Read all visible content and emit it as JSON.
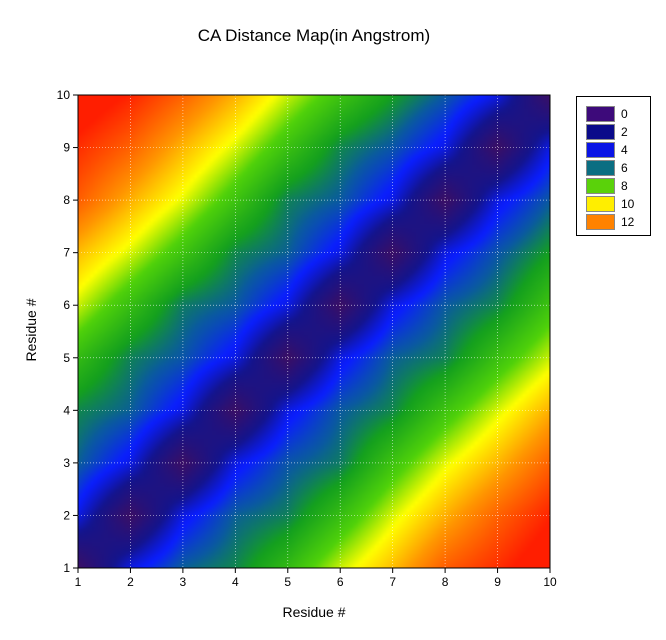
{
  "chart_data": {
    "type": "heatmap",
    "title": "CA Distance Map(in Angstrom)",
    "xlabel": "Residue #",
    "ylabel": "Residue #",
    "xlim": [
      1,
      10
    ],
    "ylim": [
      1,
      10
    ],
    "x_ticks": [
      1,
      2,
      3,
      4,
      5,
      6,
      7,
      8,
      9,
      10
    ],
    "y_ticks": [
      1,
      2,
      3,
      4,
      5,
      6,
      7,
      8,
      9,
      10
    ],
    "grid": true,
    "legend_position": "top-right",
    "residues": [
      1,
      2,
      3,
      4,
      5,
      6,
      7,
      8,
      9,
      10
    ],
    "distance_matrix": [
      [
        0.0,
        3.8,
        5.6,
        6.2,
        7.5,
        9.2,
        10.6,
        12.3,
        13.2,
        14.3
      ],
      [
        3.8,
        0.0,
        3.8,
        5.6,
        6.1,
        7.6,
        9.3,
        10.8,
        12.2,
        13.4
      ],
      [
        5.6,
        3.8,
        0.0,
        3.8,
        5.4,
        6.0,
        7.8,
        9.4,
        10.7,
        12.2
      ],
      [
        6.2,
        5.6,
        3.8,
        0.0,
        3.8,
        5.5,
        6.2,
        7.8,
        9.3,
        10.8
      ],
      [
        7.5,
        6.1,
        5.4,
        3.8,
        0.0,
        3.8,
        5.6,
        6.1,
        7.7,
        9.2
      ],
      [
        9.2,
        7.6,
        6.0,
        5.5,
        3.8,
        0.0,
        3.8,
        5.5,
        6.2,
        7.8
      ],
      [
        10.6,
        9.3,
        7.8,
        6.2,
        5.6,
        3.8,
        0.0,
        3.8,
        5.4,
        6.6
      ],
      [
        12.3,
        10.8,
        9.4,
        7.8,
        6.1,
        5.5,
        3.8,
        0.0,
        3.8,
        5.5
      ],
      [
        13.2,
        12.2,
        10.7,
        9.3,
        7.7,
        6.2,
        5.4,
        3.8,
        0.0,
        3.8
      ],
      [
        14.3,
        13.4,
        12.2,
        10.8,
        9.2,
        7.8,
        6.6,
        5.5,
        3.8,
        0.0
      ]
    ],
    "legend": [
      {
        "label": "0",
        "color": "#3d0a7a"
      },
      {
        "label": "2",
        "color": "#0a0a8a"
      },
      {
        "label": "4",
        "color": "#0a14e6"
      },
      {
        "label": "6",
        "color": "#0a6e82"
      },
      {
        "label": "8",
        "color": "#5ad20a"
      },
      {
        "label": "10",
        "color": "#ffee00"
      },
      {
        "label": "12",
        "color": "#ff8200"
      }
    ],
    "color_stops": [
      {
        "v": 0,
        "color": "#3c0f64"
      },
      {
        "v": 2.5,
        "color": "#14148c"
      },
      {
        "v": 4.2,
        "color": "#0a1eff"
      },
      {
        "v": 5.5,
        "color": "#0a5aa0"
      },
      {
        "v": 6.6,
        "color": "#14a01e"
      },
      {
        "v": 8.3,
        "color": "#50d20a"
      },
      {
        "v": 9.6,
        "color": "#ffff00"
      },
      {
        "v": 11.2,
        "color": "#ff9600"
      },
      {
        "v": 13.5,
        "color": "#ff1e00"
      }
    ]
  }
}
